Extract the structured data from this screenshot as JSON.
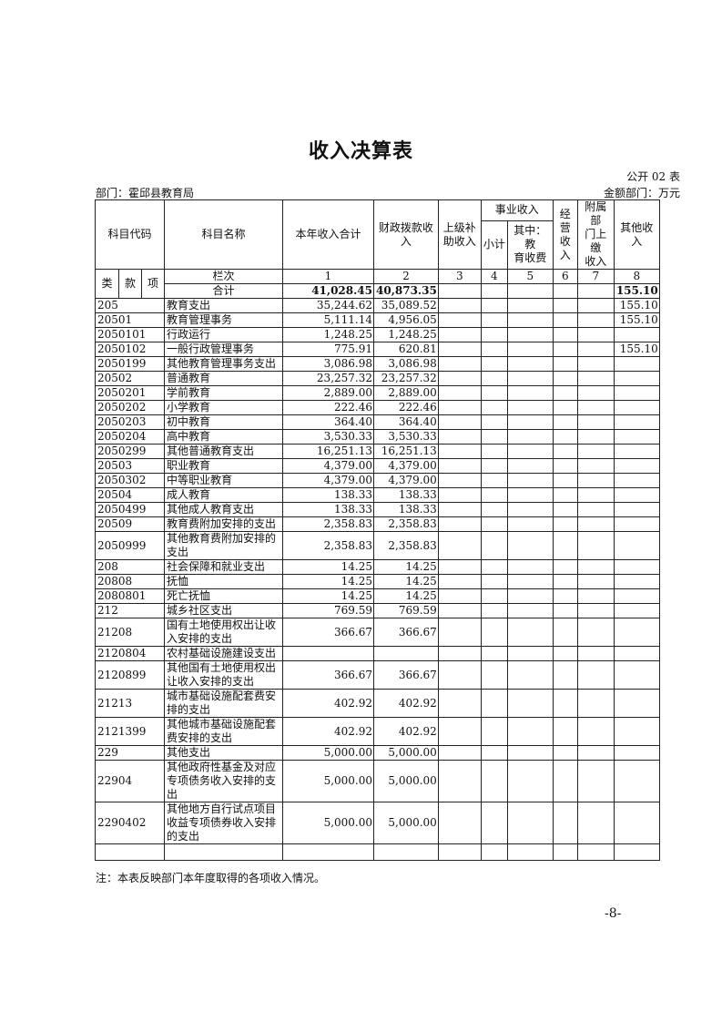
{
  "title": "收入决算表",
  "form_no": "公开 02 表",
  "department": "部门：霍邱县教育局",
  "unit": "金额部门：万元",
  "headers": {
    "code": "科目代码",
    "name": "科目名称",
    "total": "本年收入合计",
    "fiscal": "财政拨款收\n入",
    "superior": "上级补\n助收入",
    "business": "事业收入",
    "subtotal": "小计",
    "edu_fee": "其中：教\n育收费",
    "operating": "经营\n收入",
    "affiliated": "附属部\n门上缴\n收入",
    "other": "其他收\n入",
    "lei": "类",
    "kuan": "款",
    "xiang": "项",
    "lanci": "栏次",
    "col_numbers": [
      "1",
      "2",
      "3",
      "4",
      "5",
      "6",
      "7",
      "8"
    ],
    "sum_label": "合计"
  },
  "sum": {
    "total": "41,028.45",
    "fiscal": "40,873.35",
    "other": "155.10"
  },
  "rows": [
    {
      "code": "205",
      "name": "教育支出",
      "total": "35,244.62",
      "fiscal": "35,089.52",
      "other": "155.10"
    },
    {
      "code": "20501",
      "name": "教育管理事务",
      "total": "5,111.14",
      "fiscal": "4,956.05",
      "other": "155.10"
    },
    {
      "code": "2050101",
      "name": "行政运行",
      "total": "1,248.25",
      "fiscal": "1,248.25",
      "other": ""
    },
    {
      "code": "2050102",
      "name": "一般行政管理事务",
      "total": "775.91",
      "fiscal": "620.81",
      "other": "155.10"
    },
    {
      "code": "2050199",
      "name": "其他教育管理事务支出",
      "total": "3,086.98",
      "fiscal": "3,086.98",
      "other": ""
    },
    {
      "code": "20502",
      "name": "普通教育",
      "total": "23,257.32",
      "fiscal": "23,257.32",
      "other": ""
    },
    {
      "code": "2050201",
      "name": "学前教育",
      "total": "2,889.00",
      "fiscal": "2,889.00",
      "other": ""
    },
    {
      "code": "2050202",
      "name": "小学教育",
      "total": "222.46",
      "fiscal": "222.46",
      "other": ""
    },
    {
      "code": "2050203",
      "name": "初中教育",
      "total": "364.40",
      "fiscal": "364.40",
      "other": ""
    },
    {
      "code": "2050204",
      "name": "高中教育",
      "total": "3,530.33",
      "fiscal": "3,530.33",
      "other": ""
    },
    {
      "code": "2050299",
      "name": "其他普通教育支出",
      "total": "16,251.13",
      "fiscal": "16,251.13",
      "other": ""
    },
    {
      "code": "20503",
      "name": "职业教育",
      "total": "4,379.00",
      "fiscal": "4,379.00",
      "other": ""
    },
    {
      "code": "2050302",
      "name": "中等职业教育",
      "total": "4,379.00",
      "fiscal": "4,379.00",
      "other": ""
    },
    {
      "code": "20504",
      "name": "成人教育",
      "total": "138.33",
      "fiscal": "138.33",
      "other": ""
    },
    {
      "code": "2050499",
      "name": "其他成人教育支出",
      "total": "138.33",
      "fiscal": "138.33",
      "other": ""
    },
    {
      "code": "20509",
      "name": "教育费附加安排的支出",
      "total": "2,358.83",
      "fiscal": "2,358.83",
      "other": ""
    },
    {
      "code": "2050999",
      "name": "其他教育费附加安排的\n支出",
      "total": "2,358.83",
      "fiscal": "2,358.83",
      "other": ""
    },
    {
      "code": "208",
      "name": "社会保障和就业支出",
      "total": "14.25",
      "fiscal": "14.25",
      "other": ""
    },
    {
      "code": "20808",
      "name": "抚恤",
      "total": "14.25",
      "fiscal": "14.25",
      "other": ""
    },
    {
      "code": "2080801",
      "name": "死亡抚恤",
      "total": "14.25",
      "fiscal": "14.25",
      "other": ""
    },
    {
      "code": "212",
      "name": "城乡社区支出",
      "total": "769.59",
      "fiscal": "769.59",
      "other": ""
    },
    {
      "code": "21208",
      "name": "国有土地使用权出让收\n入安排的支出",
      "total": "366.67",
      "fiscal": "366.67",
      "other": ""
    },
    {
      "code": "2120804",
      "name": "农村基础设施建设支出",
      "total": "",
      "fiscal": "",
      "other": ""
    },
    {
      "code": "2120899",
      "name": "其他国有土地使用权出\n让收入安排的支出",
      "total": "366.67",
      "fiscal": "366.67",
      "other": ""
    },
    {
      "code": "21213",
      "name": "城市基础设施配套费安\n排的支出",
      "total": "402.92",
      "fiscal": "402.92",
      "other": ""
    },
    {
      "code": "2121399",
      "name": "其他城市基础设施配套\n费安排的支出",
      "total": "402.92",
      "fiscal": "402.92",
      "other": ""
    },
    {
      "code": "229",
      "name": "其他支出",
      "total": "5,000.00",
      "fiscal": "5,000.00",
      "other": ""
    },
    {
      "code": "22904",
      "name": "其他政府性基金及对应\n专项债务收入安排的支\n出",
      "total": "5,000.00",
      "fiscal": "5,000.00",
      "other": ""
    },
    {
      "code": "2290402",
      "name": "其他地方自行试点项目\n收益专项债券收入安排\n的支出",
      "total": "5,000.00",
      "fiscal": "5,000.00",
      "other": ""
    },
    {
      "code": "",
      "name": "",
      "total": "",
      "fiscal": "",
      "other": ""
    }
  ],
  "note": "注：本表反映部门本年度取得的各项收入情况。",
  "page_number": "-8-"
}
